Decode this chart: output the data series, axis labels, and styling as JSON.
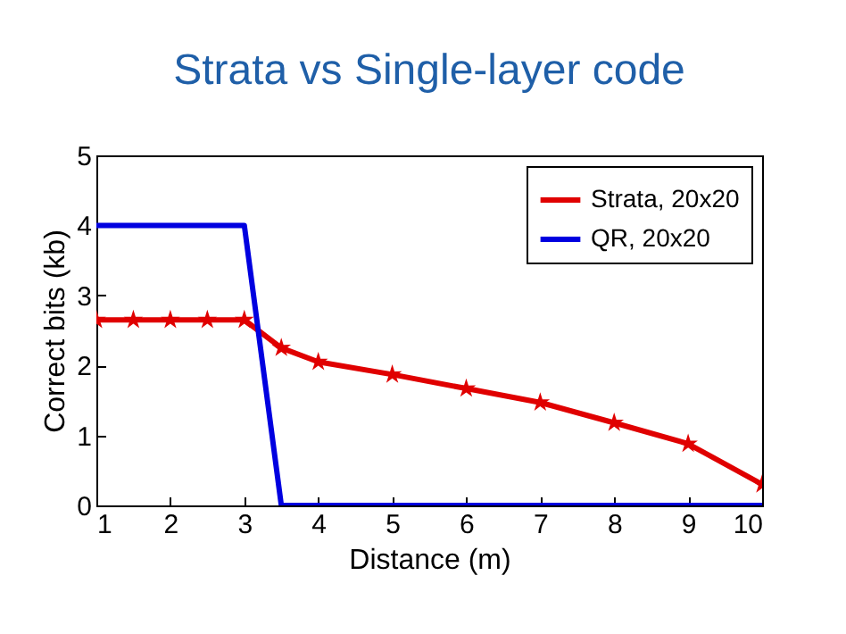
{
  "chart_data": {
    "type": "line",
    "title": "Strata vs Single-layer code",
    "xlabel": "Distance (m)",
    "ylabel": "Correct bits (kb)",
    "xlim": [
      1,
      10
    ],
    "xticks": [
      1,
      2,
      3,
      4,
      5,
      6,
      7,
      8,
      9,
      10
    ],
    "ylim": [
      0,
      5
    ],
    "yticks": [
      0,
      1,
      2,
      3,
      4,
      5
    ],
    "grid": false,
    "legend": "top right",
    "line_style": "solid",
    "series": [
      {
        "name": "Strata, 20x20",
        "color": "#e00000",
        "marker": "star",
        "x": [
          1,
          1.5,
          2,
          2.5,
          3,
          3.5,
          4,
          5,
          6,
          7,
          8,
          9,
          10
        ],
        "values": [
          2.65,
          2.65,
          2.65,
          2.65,
          2.65,
          2.25,
          2.05,
          1.87,
          1.67,
          1.47,
          1.18,
          0.88,
          0.3
        ]
      },
      {
        "name": "QR, 20x20",
        "color": "#0000e0",
        "marker": "none",
        "x": [
          1,
          3,
          3.5,
          10
        ],
        "values": [
          4,
          4,
          0,
          0
        ]
      }
    ]
  }
}
